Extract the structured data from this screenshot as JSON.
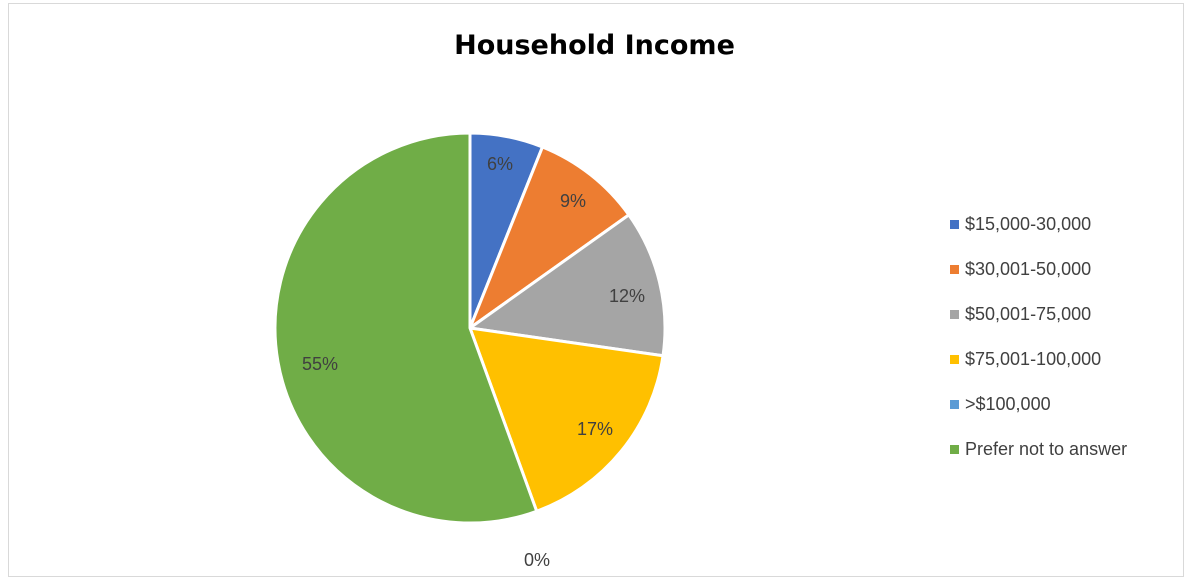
{
  "chart_data": {
    "type": "pie",
    "title": "Household Income",
    "categories": [
      "$15,000-30,000",
      "$30,001-50,000",
      "$50,001-75,000",
      "$75,001-100,000",
      ">$100,000",
      "Prefer not to answer"
    ],
    "values": [
      6,
      9,
      12,
      17,
      0,
      55
    ],
    "data_labels": [
      "6%",
      "9%",
      "12%",
      "17%",
      "0%",
      "55%"
    ],
    "colors": [
      "#4472C4",
      "#ED7D31",
      "#A5A5A5",
      "#FFC000",
      "#5B9BD5",
      "#70AD47"
    ],
    "legend_position": "right",
    "start_angle_deg": 0,
    "direction": "clockwise"
  }
}
